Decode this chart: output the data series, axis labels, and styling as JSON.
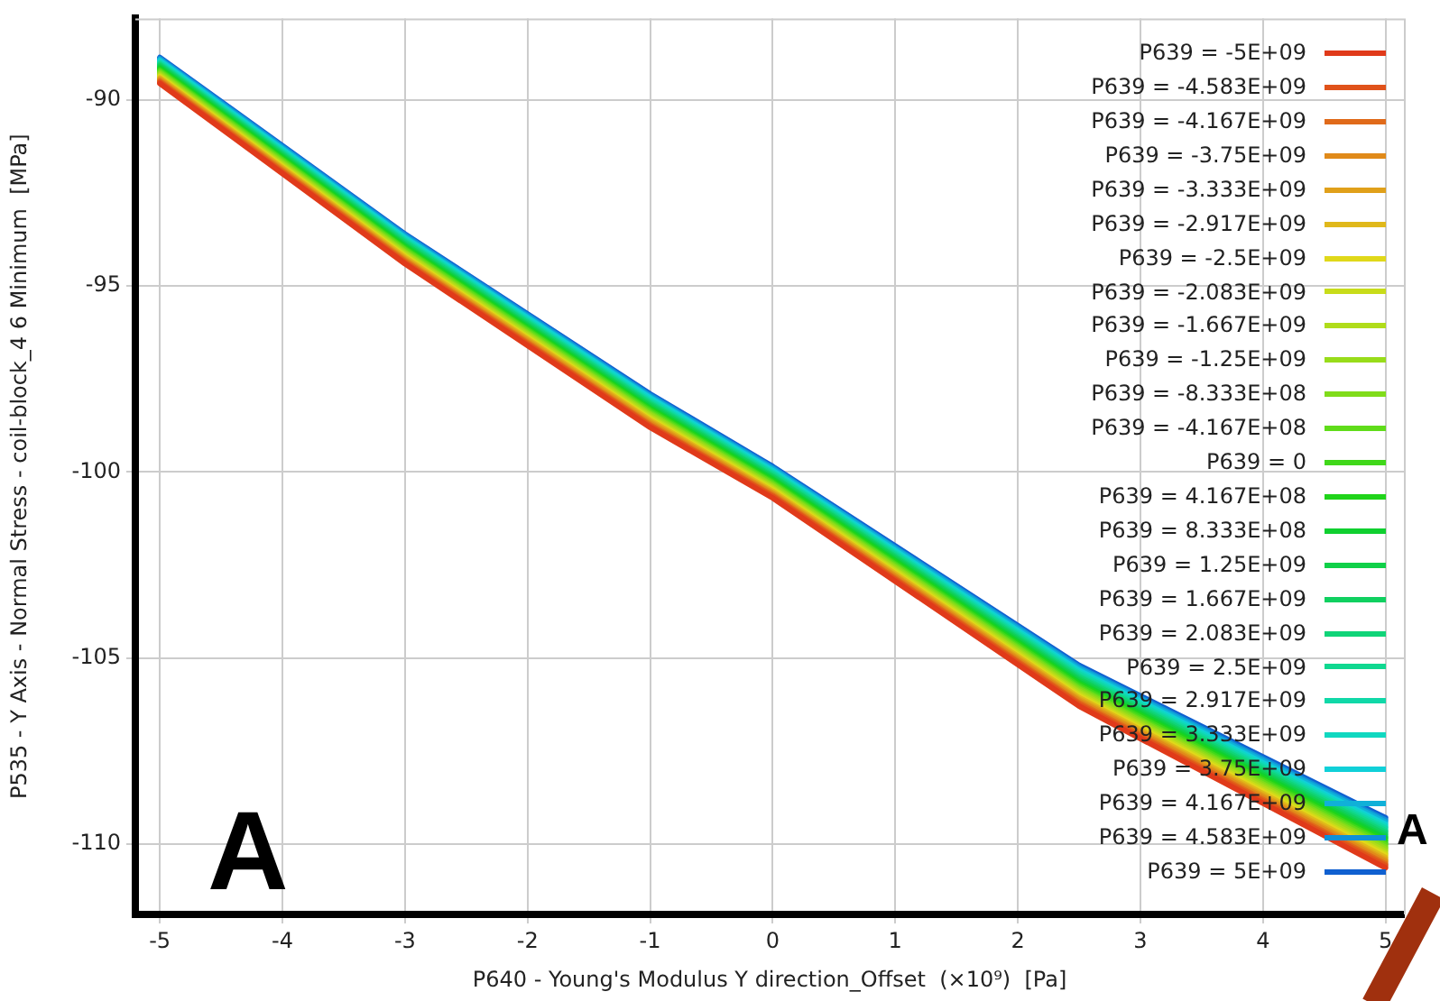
{
  "chart_data": {
    "type": "line",
    "xlabel": "P640 - Young's Modulus Y direction_Offset  (×10⁹)  [Pa]",
    "ylabel": "P535 - Y Axis - Normal Stress - coil-block_4 6 Minimum  [MPa]",
    "x": [
      -5,
      -3,
      -1,
      0,
      2.5,
      5
    ],
    "xlim": [
      -5.2,
      5.15
    ],
    "ylim": [
      -111.9,
      -87.8
    ],
    "xticks": [
      -5,
      -4,
      -3,
      -2,
      -1,
      0,
      1,
      2,
      3,
      4,
      5
    ],
    "yticks": [
      -110,
      -105,
      -100,
      -95,
      -90
    ],
    "grid": true,
    "legend": "top right",
    "marker": "none",
    "line_style": "solid",
    "annotations": [
      "A",
      "A"
    ],
    "series": [
      {
        "name": "P639 = -5E+09",
        "color": "#e03a1a",
        "values": [
          -89.55,
          -94.4,
          -98.8,
          -100.7,
          -106.3,
          -110.65
        ]
      },
      {
        "name": "P639 = -4.583E+09",
        "color": "#e0521a",
        "values": [
          -89.52,
          -94.37,
          -98.76,
          -100.66,
          -106.25,
          -110.59
        ]
      },
      {
        "name": "P639 = -4.167E+09",
        "color": "#e06a1a",
        "values": [
          -89.49,
          -94.33,
          -98.73,
          -100.63,
          -106.21,
          -110.54
        ]
      },
      {
        "name": "P639 = -3.75E+09",
        "color": "#e08a1a",
        "values": [
          -89.46,
          -94.3,
          -98.69,
          -100.59,
          -106.16,
          -110.48
        ]
      },
      {
        "name": "P639 = -3.333E+09",
        "color": "#e0a01a",
        "values": [
          -89.43,
          -94.27,
          -98.65,
          -100.56,
          -106.12,
          -110.43
        ]
      },
      {
        "name": "P639 = -2.917E+09",
        "color": "#e0b81a",
        "values": [
          -89.4,
          -94.23,
          -98.61,
          -100.52,
          -106.07,
          -110.37
        ]
      },
      {
        "name": "P639 = -2.5E+09",
        "color": "#e0d81a",
        "values": [
          -89.38,
          -94.2,
          -98.58,
          -100.49,
          -106.03,
          -110.31
        ]
      },
      {
        "name": "P639 = -2.083E+09",
        "color": "#c8dc1a",
        "values": [
          -89.35,
          -94.17,
          -98.54,
          -100.45,
          -105.98,
          -110.26
        ]
      },
      {
        "name": "P639 = -1.667E+09",
        "color": "#b0dc1a",
        "values": [
          -89.32,
          -94.13,
          -98.5,
          -100.42,
          -105.93,
          -110.2
        ]
      },
      {
        "name": "P639 = -1.25E+09",
        "color": "#98dc1a",
        "values": [
          -89.29,
          -94.1,
          -98.46,
          -100.38,
          -105.89,
          -110.14
        ]
      },
      {
        "name": "P639 = -8.333E+08",
        "color": "#80dc1a",
        "values": [
          -89.26,
          -94.07,
          -98.43,
          -100.35,
          -105.84,
          -110.09
        ]
      },
      {
        "name": "P639 = -4.167E+08",
        "color": "#60dc1a",
        "values": [
          -89.23,
          -94.03,
          -98.39,
          -100.31,
          -105.8,
          -110.03
        ]
      },
      {
        "name": "P639 = 0",
        "color": "#40d81a",
        "values": [
          -89.2,
          -94.0,
          -98.35,
          -100.28,
          -105.75,
          -109.98
        ]
      },
      {
        "name": "P639 = 4.167E+08",
        "color": "#20d41a",
        "values": [
          -89.17,
          -93.97,
          -98.31,
          -100.24,
          -105.7,
          -109.92
        ]
      },
      {
        "name": "P639 = 8.333E+08",
        "color": "#10d030",
        "values": [
          -89.14,
          -93.93,
          -98.28,
          -100.2,
          -105.66,
          -109.86
        ]
      },
      {
        "name": "P639 = 1.25E+09",
        "color": "#10d048",
        "values": [
          -89.11,
          -93.9,
          -98.24,
          -100.17,
          -105.61,
          -109.81
        ]
      },
      {
        "name": "P639 = 1.667E+09",
        "color": "#10d060",
        "values": [
          -89.08,
          -93.87,
          -98.2,
          -100.13,
          -105.57,
          -109.75
        ]
      },
      {
        "name": "P639 = 2.083E+09",
        "color": "#10d478",
        "values": [
          -89.05,
          -93.83,
          -98.16,
          -100.1,
          -105.52,
          -109.69
        ]
      },
      {
        "name": "P639 = 2.5E+09",
        "color": "#10d890",
        "values": [
          -89.03,
          -93.8,
          -98.13,
          -100.06,
          -105.48,
          -109.64
        ]
      },
      {
        "name": "P639 = 2.917E+09",
        "color": "#10d8a8",
        "values": [
          -89.0,
          -93.77,
          -98.09,
          -100.03,
          -105.43,
          -109.58
        ]
      },
      {
        "name": "P639 = 3.333E+09",
        "color": "#10d8c0",
        "values": [
          -88.97,
          -93.73,
          -98.05,
          -99.99,
          -105.38,
          -109.53
        ]
      },
      {
        "name": "P639 = 3.75E+09",
        "color": "#10d0d8",
        "values": [
          -88.94,
          -93.7,
          -98.01,
          -99.96,
          -105.34,
          -109.47
        ]
      },
      {
        "name": "P639 = 4.167E+09",
        "color": "#10b0d8",
        "values": [
          -88.91,
          -93.67,
          -97.98,
          -99.92,
          -105.29,
          -109.41
        ]
      },
      {
        "name": "P639 = 4.583E+09",
        "color": "#1090d8",
        "values": [
          -88.88,
          -93.63,
          -97.94,
          -99.89,
          -105.25,
          -109.36
        ]
      },
      {
        "name": "P639 = 5E+09",
        "color": "#1060d0",
        "values": [
          -88.85,
          -93.6,
          -97.9,
          -99.85,
          -105.2,
          -109.3
        ]
      }
    ]
  }
}
